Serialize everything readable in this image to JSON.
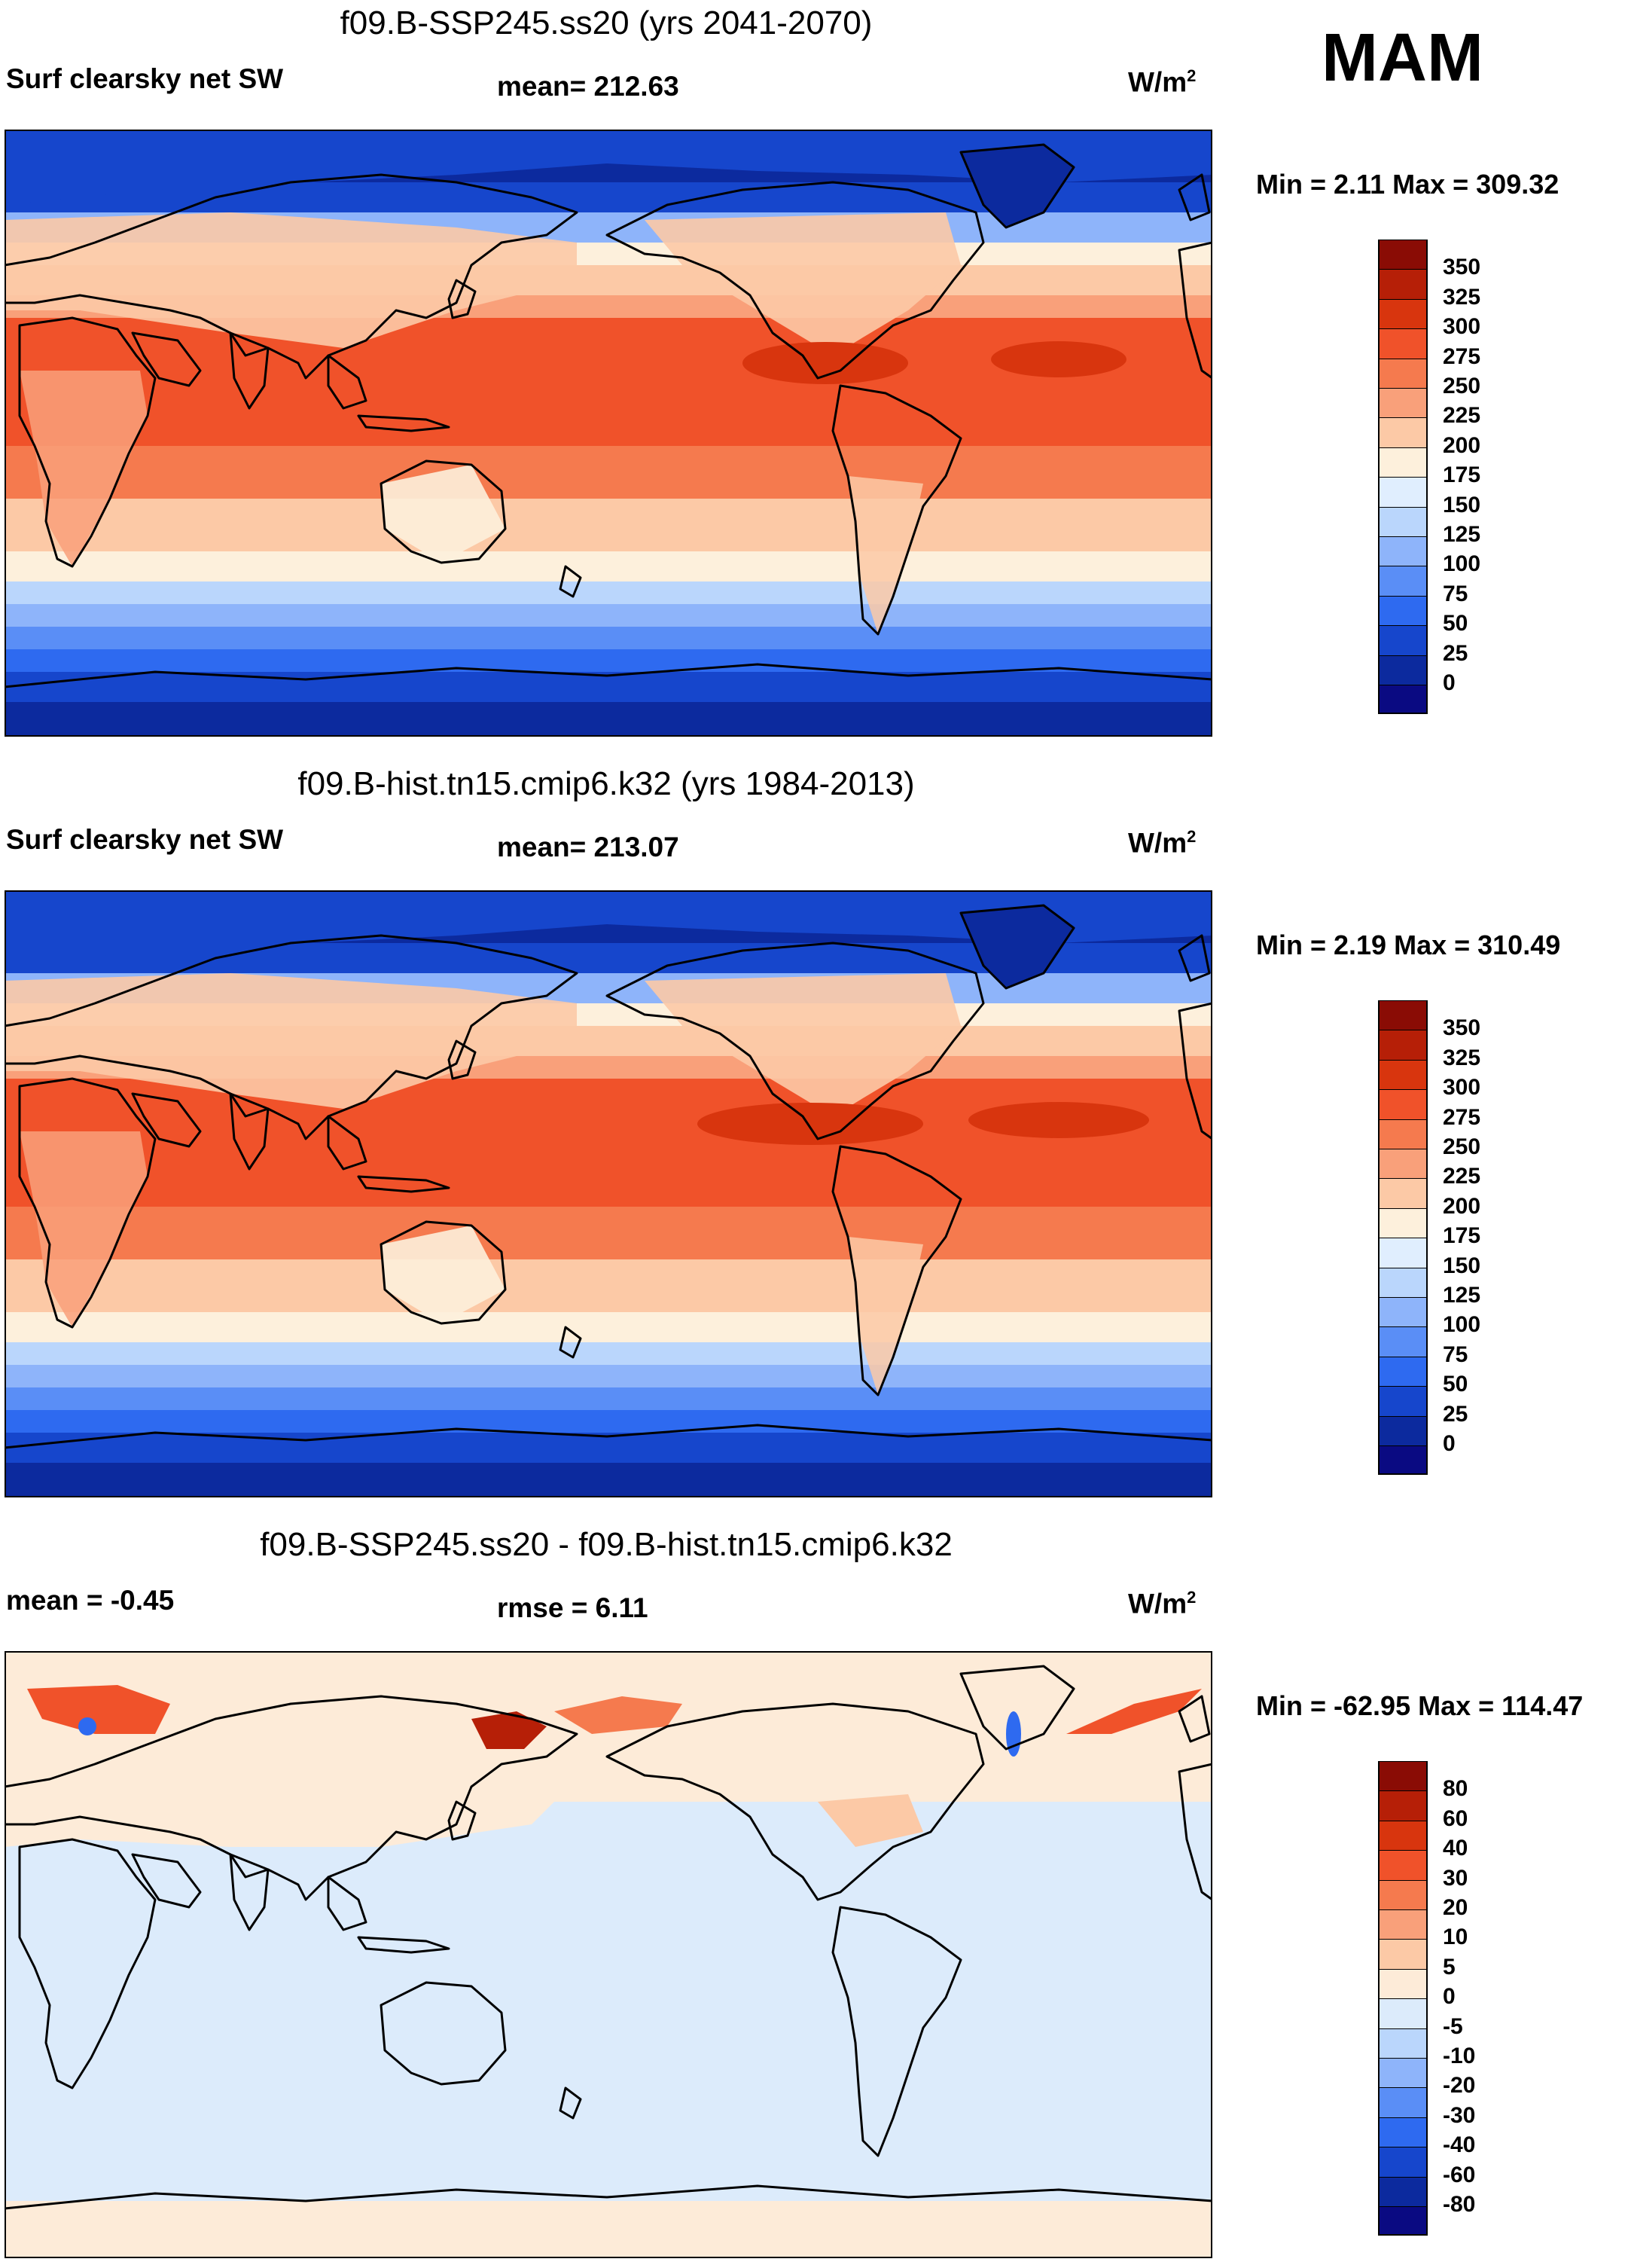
{
  "season": "MAM",
  "colors": {
    "abs_scale": [
      "#0a0a82",
      "#0c2a9e",
      "#1646cc",
      "#2e6af0",
      "#5a8ef6",
      "#8eb4fa",
      "#bad6fc",
      "#e0eefe",
      "#fdf0dc",
      "#fcc9a6",
      "#f9a07a",
      "#f57a4e",
      "#f0522a",
      "#d8350e",
      "#b61f07",
      "#8a0c05"
    ],
    "diff_scale": [
      "#0a0a82",
      "#0c2a9e",
      "#1646cc",
      "#2e6af0",
      "#5a8ef6",
      "#8eb4fa",
      "#bad6fc",
      "#dcebfb",
      "#fdebd8",
      "#fcc9a6",
      "#f9a07a",
      "#f57a4e",
      "#f0522a",
      "#d8350e",
      "#b61f07",
      "#8a0c05"
    ],
    "coastline": "#000000"
  },
  "panels": [
    {
      "title": "f09.B-SSP245.ss20 (yrs 2041-2070)",
      "left_label": "Surf clearsky net SW",
      "mid_label": "mean= 212.63",
      "units": "W/m",
      "units_exp": "2",
      "minmax": "Min =   2.11 Max = 309.32",
      "colorbar_labels": [
        "350",
        "325",
        "300",
        "275",
        "250",
        "225",
        "200",
        "175",
        "150",
        "125",
        "100",
        "75",
        "50",
        "25",
        "0"
      ],
      "map_kind": "abs"
    },
    {
      "title": "f09.B-hist.tn15.cmip6.k32 (yrs 1984-2013)",
      "left_label": "Surf clearsky net SW",
      "mid_label": "mean= 213.07",
      "units": "W/m",
      "units_exp": "2",
      "minmax": "Min =   2.19 Max = 310.49",
      "colorbar_labels": [
        "350",
        "325",
        "300",
        "275",
        "250",
        "225",
        "200",
        "175",
        "150",
        "125",
        "100",
        "75",
        "50",
        "25",
        "0"
      ],
      "map_kind": "abs"
    },
    {
      "title": "f09.B-SSP245.ss20 - f09.B-hist.tn15.cmip6.k32",
      "left_label": "mean =  -0.45",
      "mid_label": "rmse =    6.11",
      "units": "W/m",
      "units_exp": "2",
      "minmax": "Min = -62.95 Max = 114.47",
      "colorbar_labels": [
        "80",
        "60",
        "40",
        "30",
        "20",
        "10",
        "5",
        "0",
        "-5",
        "-10",
        "-20",
        "-30",
        "-40",
        "-60",
        "-80"
      ],
      "map_kind": "diff"
    }
  ]
}
